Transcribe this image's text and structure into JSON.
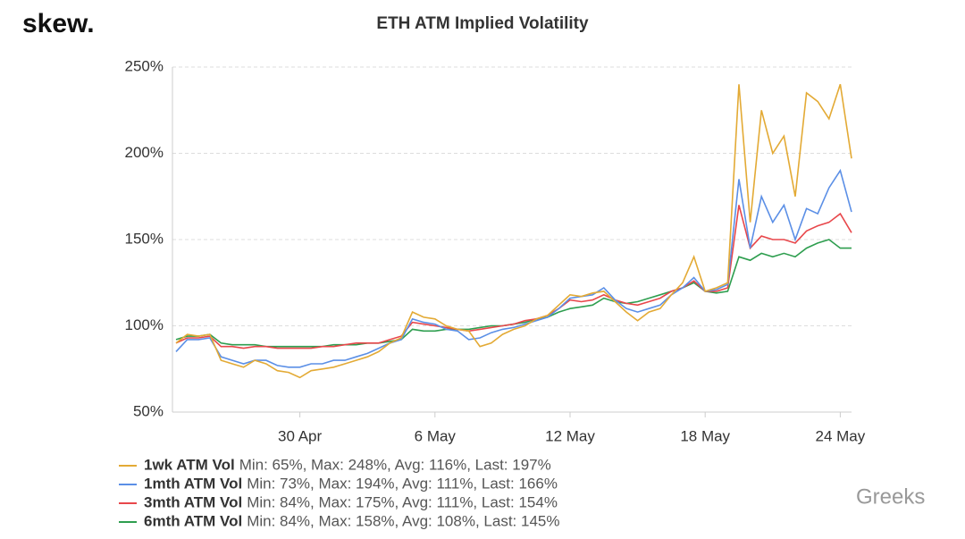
{
  "logo": "skew.",
  "watermark": "Greeks",
  "chart_data": {
    "type": "line",
    "title": "ETH ATM Implied Volatility",
    "categories": [
      null,
      null,
      null,
      null,
      null,
      null,
      null,
      null,
      null,
      null,
      null,
      "30 Apr",
      null,
      null,
      null,
      null,
      null,
      null,
      null,
      null,
      null,
      null,
      null,
      "6 May",
      null,
      null,
      null,
      null,
      null,
      null,
      null,
      null,
      null,
      null,
      null,
      "12 May",
      null,
      null,
      null,
      null,
      null,
      null,
      null,
      null,
      null,
      null,
      null,
      "18 May",
      null,
      null,
      null,
      null,
      null,
      null,
      null,
      null,
      null,
      null,
      null,
      "24 May",
      null
    ],
    "ylim": [
      50,
      250
    ],
    "yticks": [
      {
        "value": 50,
        "label": "50%"
      },
      {
        "value": 100,
        "label": "100%"
      },
      {
        "value": 150,
        "label": "150%"
      },
      {
        "value": 200,
        "label": "200%"
      },
      {
        "value": 250,
        "label": "250%"
      }
    ],
    "grid": true,
    "series": [
      {
        "name": "1wk ATM Vol",
        "stats": "Min: 65%, Max: 248%, Avg: 116%, Last: 197%",
        "color": "#e3aa35",
        "values": [
          90,
          95,
          94,
          95,
          80,
          78,
          76,
          80,
          78,
          74,
          73,
          70,
          74,
          75,
          76,
          78,
          80,
          82,
          85,
          90,
          93,
          108,
          105,
          104,
          100,
          98,
          97,
          88,
          90,
          95,
          98,
          100,
          104,
          106,
          112,
          118,
          117,
          119,
          120,
          114,
          108,
          103,
          108,
          110,
          118,
          125,
          140,
          120,
          122,
          125,
          240,
          160,
          225,
          200,
          210,
          175,
          235,
          230,
          220,
          240,
          197
        ]
      },
      {
        "name": "1mth ATM Vol",
        "stats": "Min: 73%, Max: 194%, Avg: 111%, Last: 166%",
        "color": "#5b8fe6",
        "values": [
          85,
          92,
          92,
          93,
          82,
          80,
          78,
          80,
          80,
          77,
          76,
          76,
          78,
          78,
          80,
          80,
          82,
          84,
          87,
          90,
          92,
          104,
          102,
          101,
          98,
          97,
          92,
          93,
          96,
          98,
          99,
          101,
          103,
          105,
          110,
          116,
          117,
          118,
          122,
          115,
          110,
          108,
          110,
          112,
          118,
          122,
          128,
          120,
          121,
          124,
          185,
          145,
          175,
          160,
          170,
          150,
          168,
          165,
          180,
          190,
          166
        ]
      },
      {
        "name": "3mth ATM Vol",
        "stats": "Min: 84%, Max: 175%, Avg: 111%, Last: 154%",
        "color": "#e8474b",
        "values": [
          90,
          93,
          93,
          94,
          88,
          88,
          87,
          88,
          88,
          87,
          87,
          87,
          87,
          88,
          88,
          89,
          90,
          90,
          90,
          92,
          94,
          102,
          101,
          100,
          99,
          98,
          97,
          98,
          99,
          100,
          101,
          103,
          104,
          106,
          110,
          115,
          114,
          115,
          118,
          115,
          113,
          112,
          114,
          116,
          120,
          122,
          126,
          120,
          120,
          122,
          170,
          145,
          152,
          150,
          150,
          148,
          155,
          158,
          160,
          165,
          154
        ]
      },
      {
        "name": "6mth ATM Vol",
        "stats": "Min: 84%, Max: 158%, Avg: 108%, Last: 145%",
        "color": "#2e9e4f",
        "values": [
          92,
          94,
          94,
          95,
          90,
          89,
          89,
          89,
          88,
          88,
          88,
          88,
          88,
          88,
          89,
          89,
          89,
          90,
          90,
          91,
          92,
          98,
          97,
          97,
          98,
          98,
          98,
          99,
          100,
          100,
          101,
          102,
          104,
          105,
          108,
          110,
          111,
          112,
          116,
          114,
          113,
          114,
          116,
          118,
          120,
          122,
          125,
          120,
          119,
          120,
          140,
          138,
          142,
          140,
          142,
          140,
          145,
          148,
          150,
          145,
          145
        ]
      }
    ]
  }
}
